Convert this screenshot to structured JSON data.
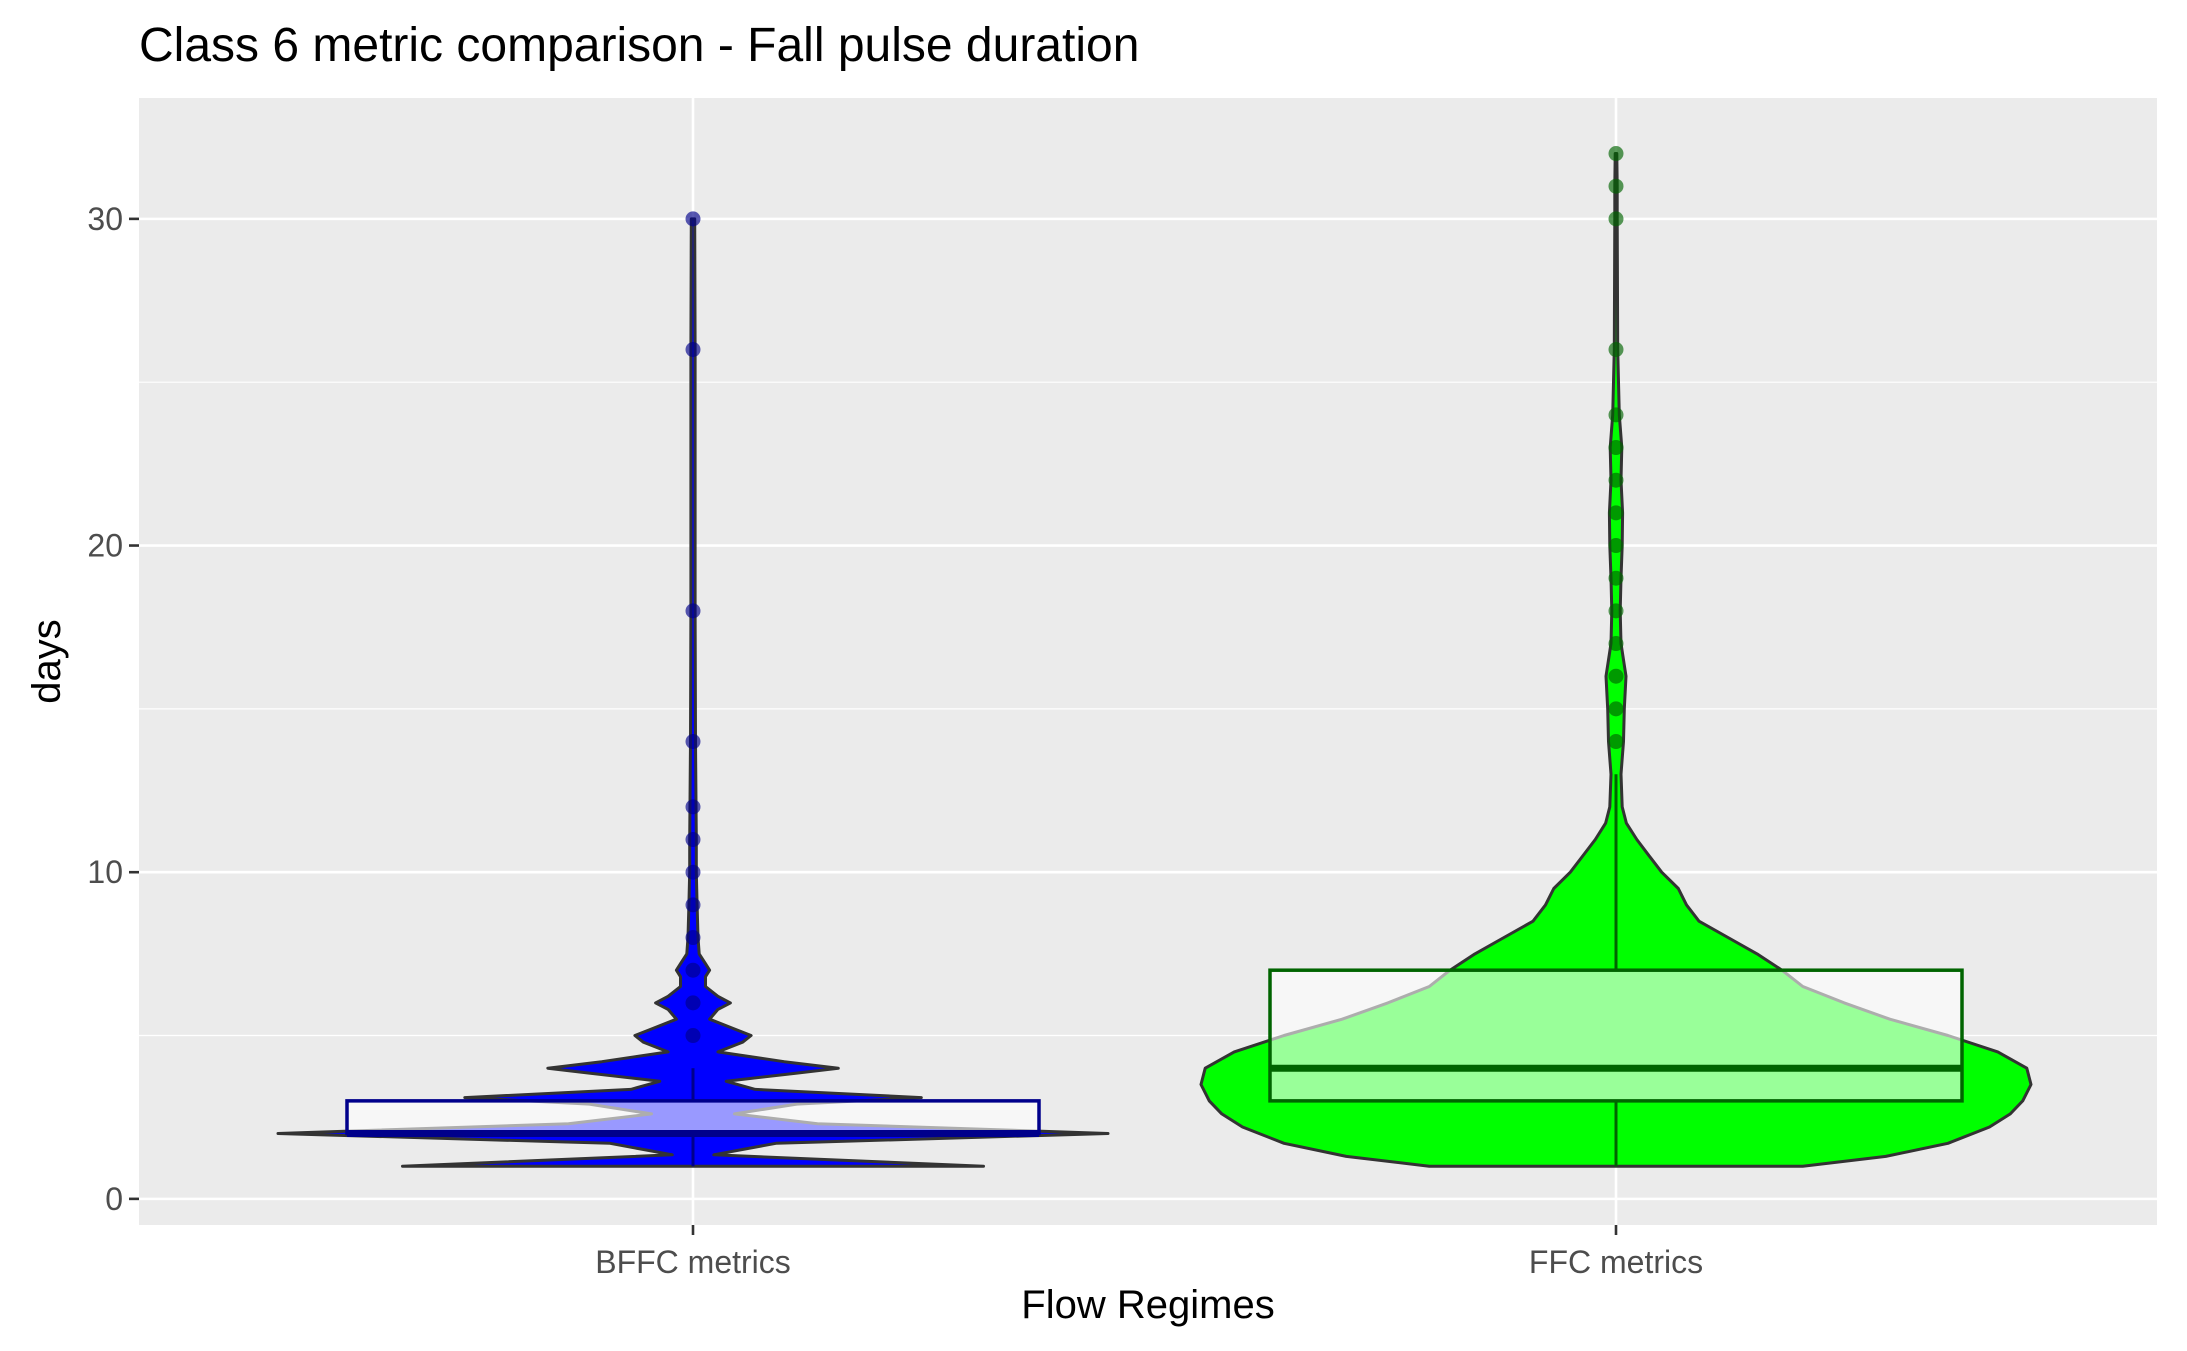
{
  "chart_data": {
    "type": "violin",
    "title": "Class 6 metric comparison - Fall pulse duration",
    "xlabel": "Flow Regimes",
    "ylabel": "days",
    "ylim": [
      -0.8,
      33.7
    ],
    "yticks": [
      0,
      10,
      20,
      30
    ],
    "grid": true,
    "legend": "none",
    "categories": [
      "BFFC metrics",
      "FFC metrics"
    ],
    "series": [
      {
        "category": "BFFC metrics",
        "fill_color": "#0000ff",
        "box_color": "#00008b",
        "box": {
          "lower_whisker": 1,
          "q1": 2,
          "median": 2,
          "q3": 3,
          "upper_whisker": 4
        },
        "density_profile": [
          [
            1,
            0.7
          ],
          [
            1.35,
            0.05
          ],
          [
            1.7,
            0.2
          ],
          [
            2,
            1.0
          ],
          [
            2.3,
            0.3
          ],
          [
            2.6,
            0.1
          ],
          [
            2.9,
            0.25
          ],
          [
            3.1,
            0.55
          ],
          [
            3.35,
            0.15
          ],
          [
            3.6,
            0.08
          ],
          [
            3.85,
            0.25
          ],
          [
            4,
            0.35
          ],
          [
            4.2,
            0.22
          ],
          [
            4.5,
            0.06
          ],
          [
            4.8,
            0.12
          ],
          [
            5,
            0.14
          ],
          [
            5.2,
            0.1
          ],
          [
            5.5,
            0.04
          ],
          [
            5.8,
            0.06
          ],
          [
            6,
            0.09
          ],
          [
            6.2,
            0.06
          ],
          [
            6.5,
            0.03
          ],
          [
            6.8,
            0.03
          ],
          [
            7,
            0.04
          ],
          [
            7.2,
            0.03
          ],
          [
            7.5,
            0.015
          ],
          [
            8,
            0.012
          ],
          [
            9,
            0.01
          ],
          [
            10,
            0.008
          ],
          [
            11,
            0.008
          ],
          [
            14,
            0.006
          ],
          [
            18,
            0.005
          ],
          [
            26,
            0.005
          ],
          [
            30,
            0.004
          ]
        ],
        "outliers": [
          5,
          6,
          7,
          8,
          9,
          10,
          11,
          12,
          14,
          18,
          26,
          30
        ]
      },
      {
        "category": "FFC metrics",
        "fill_color": "#00ff00",
        "box_color": "#006400",
        "box": {
          "lower_whisker": 1,
          "q1": 3,
          "median": 4,
          "q3": 7,
          "upper_whisker": 13
        },
        "density_profile": [
          [
            1,
            0.45
          ],
          [
            1.3,
            0.65
          ],
          [
            1.7,
            0.8
          ],
          [
            2.2,
            0.9
          ],
          [
            2.6,
            0.95
          ],
          [
            3,
            0.98
          ],
          [
            3.5,
            1.0
          ],
          [
            4,
            0.99
          ],
          [
            4.5,
            0.92
          ],
          [
            5,
            0.8
          ],
          [
            5.5,
            0.66
          ],
          [
            6,
            0.55
          ],
          [
            6.5,
            0.45
          ],
          [
            7,
            0.4
          ],
          [
            7.5,
            0.34
          ],
          [
            8,
            0.27
          ],
          [
            8.5,
            0.2
          ],
          [
            9,
            0.17
          ],
          [
            9.5,
            0.15
          ],
          [
            10,
            0.11
          ],
          [
            10.5,
            0.08
          ],
          [
            11,
            0.05
          ],
          [
            11.5,
            0.025
          ],
          [
            12,
            0.015
          ],
          [
            13,
            0.012
          ],
          [
            14,
            0.018
          ],
          [
            15,
            0.02
          ],
          [
            16,
            0.024
          ],
          [
            17,
            0.012
          ],
          [
            18,
            0.01
          ],
          [
            19,
            0.012
          ],
          [
            20,
            0.015
          ],
          [
            21,
            0.016
          ],
          [
            22,
            0.012
          ],
          [
            23,
            0.014
          ],
          [
            24,
            0.008
          ],
          [
            26,
            0.004
          ],
          [
            30,
            0.003
          ],
          [
            31,
            0.003
          ],
          [
            32,
            0.002
          ]
        ],
        "outliers": [
          14,
          15,
          16,
          17,
          18,
          19,
          20,
          21,
          22,
          23,
          24,
          26,
          30,
          31,
          32
        ]
      }
    ]
  }
}
